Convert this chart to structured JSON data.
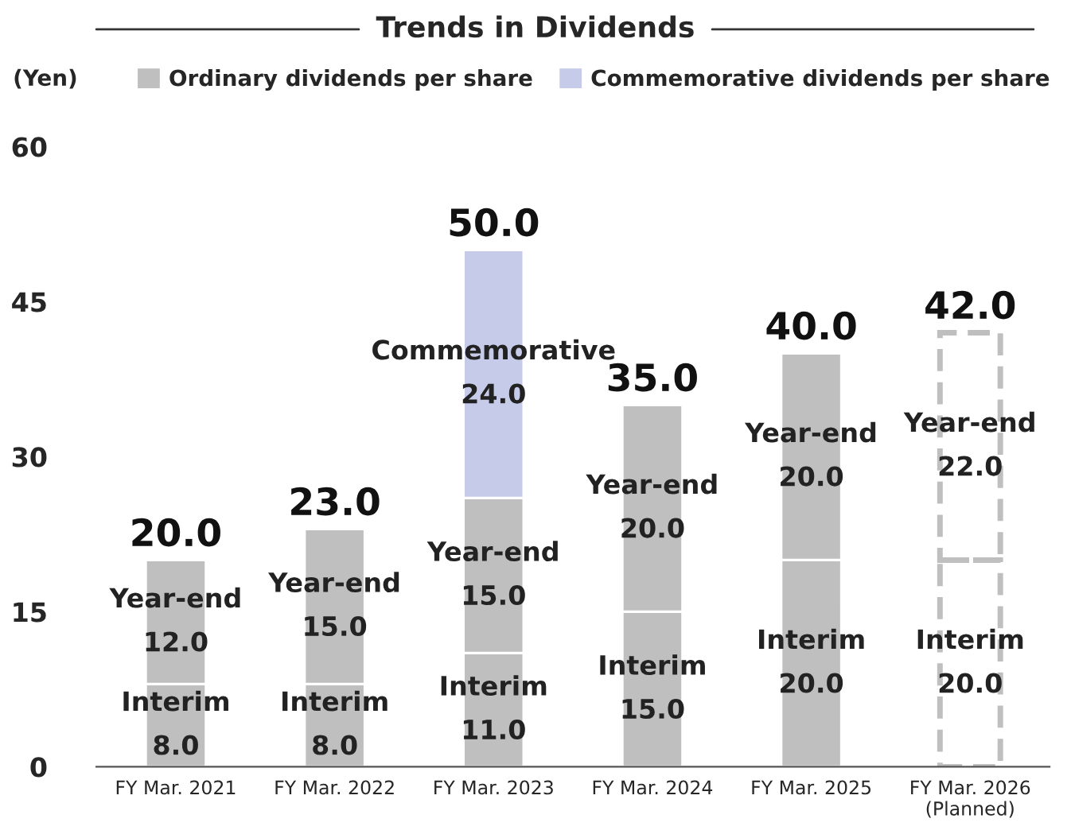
{
  "chart_data": {
    "type": "bar",
    "title": "Trends in Dividends",
    "ylabel": "(Yen)",
    "categories": [
      "FY Mar. 2021",
      "FY Mar. 2022",
      "FY Mar. 2023",
      "FY Mar. 2024",
      "FY Mar. 2025",
      "FY Mar. 2026\n(Planned)"
    ],
    "stacked": true,
    "ylim": [
      0,
      60
    ],
    "yticks": [
      0,
      15,
      30,
      45,
      60
    ],
    "grid": false,
    "legend": "top left",
    "series": [
      {
        "name": "Ordinary dividends per share",
        "color": "#bfbfbf",
        "values": [
          8,
          8,
          11,
          15,
          20,
          null
        ],
        "value_labels": [
          "Interim\n8.0",
          "Interim\n8.0",
          "Interim\n11.0",
          "Interim\n15.0",
          "Interim\n20.0",
          null
        ]
      },
      {
        "color": "#bfbfbf",
        "values": [
          12,
          15,
          15,
          20,
          20,
          null
        ],
        "value_labels": [
          "Year-end\n12.0",
          "Year-end\n15.0",
          "Year-end\n15.0",
          "Year-end\n20.0",
          "Year-end\n20.0",
          null
        ]
      },
      {
        "name": "Commemorative dividends per share",
        "color": "#c5cbe9",
        "values": [
          null,
          null,
          24,
          null,
          null,
          null
        ],
        "value_labels": [
          null,
          null,
          "Commemorative\n24.0",
          null,
          null,
          null
        ]
      },
      {
        "color": "#bfbfbf",
        "line_style": "dashed",
        "values": [
          null,
          null,
          null,
          null,
          null,
          20
        ],
        "value_labels": [
          null,
          null,
          null,
          null,
          null,
          "Interim\n20.0"
        ]
      },
      {
        "color": "#bfbfbf",
        "line_style": "dashed",
        "values": [
          null,
          null,
          null,
          null,
          null,
          22
        ],
        "value_labels": [
          null,
          null,
          null,
          null,
          null,
          "Year-end\n22.0"
        ]
      }
    ],
    "totals": [
      "20.0",
      "23.0",
      "50.0",
      "35.0",
      "40.0",
      "42.0"
    ]
  }
}
